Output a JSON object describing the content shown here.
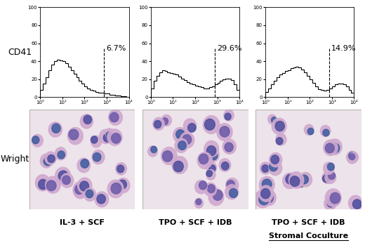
{
  "row_labels": [
    "CD41",
    "Wright"
  ],
  "chart_data": [
    {
      "type": "histogram",
      "bins": [
        1,
        1.334,
        1.778,
        2.371,
        3.162,
        4.217,
        5.623,
        7.499,
        10,
        13.34,
        17.78,
        23.71,
        31.62,
        42.17,
        56.23,
        74.99,
        100,
        133.4,
        177.8,
        237.1,
        316.2,
        421.7,
        562.3,
        749.9,
        1000,
        1334,
        1778,
        2371,
        3162,
        4217,
        5623,
        7499,
        10000
      ],
      "counts": [
        8,
        15,
        22,
        30,
        36,
        40,
        42,
        41,
        40,
        38,
        34,
        30,
        26,
        22,
        18,
        15,
        12,
        10,
        8,
        7,
        6,
        5,
        5,
        4,
        4,
        3,
        3,
        2,
        2,
        1,
        1,
        0
      ],
      "log": "x",
      "xlim": [
        1,
        10000
      ],
      "xticks": [
        {
          "value": 1,
          "label": "10⁰"
        },
        {
          "value": 10,
          "label": "10¹"
        },
        {
          "value": 100,
          "label": "10²"
        },
        {
          "value": 1000,
          "label": "10³"
        },
        {
          "value": 10000,
          "label": "10⁴"
        }
      ],
      "ylim": [
        0,
        100
      ],
      "yticks": [
        0,
        20,
        40,
        60,
        80,
        100
      ],
      "annotations": [
        {
          "x": 750,
          "text": "6.7%"
        }
      ]
    },
    {
      "type": "histogram",
      "bins": [
        1,
        1.334,
        1.778,
        2.371,
        3.162,
        4.217,
        5.623,
        7.499,
        10,
        13.34,
        17.78,
        23.71,
        31.62,
        42.17,
        56.23,
        74.99,
        100,
        133.4,
        177.8,
        237.1,
        316.2,
        421.7,
        562.3,
        749.9,
        1000,
        1334,
        1778,
        2371,
        3162,
        4217,
        5623,
        7499,
        10000
      ],
      "counts": [
        10,
        18,
        24,
        28,
        30,
        29,
        28,
        27,
        26,
        25,
        23,
        21,
        19,
        17,
        15,
        14,
        13,
        12,
        11,
        10,
        10,
        11,
        12,
        14,
        16,
        18,
        20,
        21,
        21,
        19,
        14,
        8
      ],
      "log": "x",
      "xlim": [
        1,
        10000
      ],
      "xticks": [
        {
          "value": 1,
          "label": "10⁰"
        },
        {
          "value": 10,
          "label": "10¹"
        },
        {
          "value": 100,
          "label": "10²"
        },
        {
          "value": 1000,
          "label": "10³"
        },
        {
          "value": 10000,
          "label": "10⁴"
        }
      ],
      "ylim": [
        0,
        100
      ],
      "yticks": [
        0,
        20,
        40,
        60,
        80,
        100
      ],
      "annotations": [
        {
          "x": 750,
          "text": "29.6%"
        }
      ]
    },
    {
      "type": "histogram",
      "bins": [
        1,
        1.334,
        1.778,
        2.371,
        3.162,
        4.217,
        5.623,
        7.499,
        10,
        13.34,
        17.78,
        23.71,
        31.62,
        42.17,
        56.23,
        74.99,
        100,
        133.4,
        177.8,
        237.1,
        316.2,
        421.7,
        562.3,
        749.9,
        1000,
        1334,
        1778,
        2371,
        3162,
        4217,
        5623,
        7499,
        10000
      ],
      "counts": [
        6,
        10,
        14,
        18,
        22,
        25,
        27,
        29,
        30,
        32,
        33,
        34,
        33,
        31,
        28,
        24,
        20,
        16,
        12,
        9,
        8,
        7,
        8,
        10,
        12,
        14,
        15,
        15,
        14,
        12,
        8,
        5
      ],
      "log": "x",
      "xlim": [
        1,
        10000
      ],
      "xticks": [
        {
          "value": 1,
          "label": "10⁰"
        },
        {
          "value": 10,
          "label": "10¹"
        },
        {
          "value": 100,
          "label": "10²"
        },
        {
          "value": 1000,
          "label": "10³"
        },
        {
          "value": 10000,
          "label": "10⁴"
        }
      ],
      "ylim": [
        0,
        100
      ],
      "yticks": [
        0,
        20,
        40,
        60,
        80,
        100
      ],
      "annotations": [
        {
          "x": 750,
          "text": "14.9%"
        }
      ]
    }
  ],
  "conditions": [
    {
      "label": "IL-3 + SCF"
    },
    {
      "label": "TPO + SCF + IDB"
    },
    {
      "label": "TPO + SCF + IDB",
      "sublabel": "Stromal Coculture"
    }
  ]
}
